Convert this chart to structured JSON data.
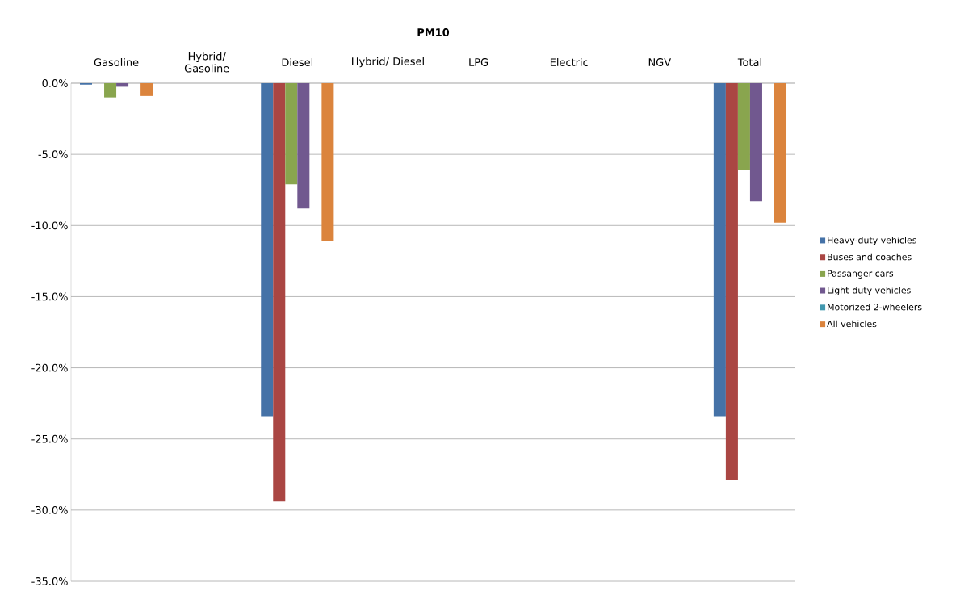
{
  "chart_data": {
    "type": "bar",
    "title": "PM10",
    "categories": [
      "Gasoline",
      "Hybrid/ Gasoline",
      "Diesel",
      "Hybrid/ Diesel",
      "LPG",
      "Electric",
      "NGV",
      "Total"
    ],
    "series": [
      {
        "name": "Heavy-duty vehicles",
        "color": "#4572a7",
        "values": [
          -0.1,
          null,
          -23.4,
          null,
          null,
          null,
          null,
          -23.4
        ]
      },
      {
        "name": "Buses and coaches",
        "color": "#aa4643",
        "values": [
          null,
          null,
          -29.4,
          null,
          null,
          null,
          null,
          -27.9
        ]
      },
      {
        "name": "Passanger cars",
        "color": "#89a54e",
        "values": [
          -1.0,
          null,
          -7.1,
          null,
          null,
          null,
          null,
          -6.1
        ]
      },
      {
        "name": "Light-duty vehicles",
        "color": "#71588f",
        "values": [
          -0.25,
          null,
          -8.8,
          null,
          null,
          null,
          null,
          -8.3
        ]
      },
      {
        "name": "Motorized 2-wheelers",
        "color": "#4198af",
        "values": [
          null,
          null,
          null,
          null,
          null,
          null,
          null,
          null
        ]
      },
      {
        "name": "All vehicles",
        "color": "#db843d",
        "values": [
          -0.9,
          null,
          -11.1,
          null,
          null,
          null,
          null,
          -9.8
        ]
      }
    ],
    "ylim": [
      -35,
      0
    ],
    "yticks": [
      {
        "value": 0,
        "label": "0.0%"
      },
      {
        "value": -5,
        "label": "-5.0%"
      },
      {
        "value": -10,
        "label": "-10.0%"
      },
      {
        "value": -15,
        "label": "-15.0%"
      },
      {
        "value": -20,
        "label": "-20.0%"
      },
      {
        "value": -25,
        "label": "-25.0%"
      },
      {
        "value": -30,
        "label": "-30.0%"
      },
      {
        "value": -35,
        "label": "-35.0%"
      }
    ],
    "grid": "y",
    "legend": "right"
  }
}
